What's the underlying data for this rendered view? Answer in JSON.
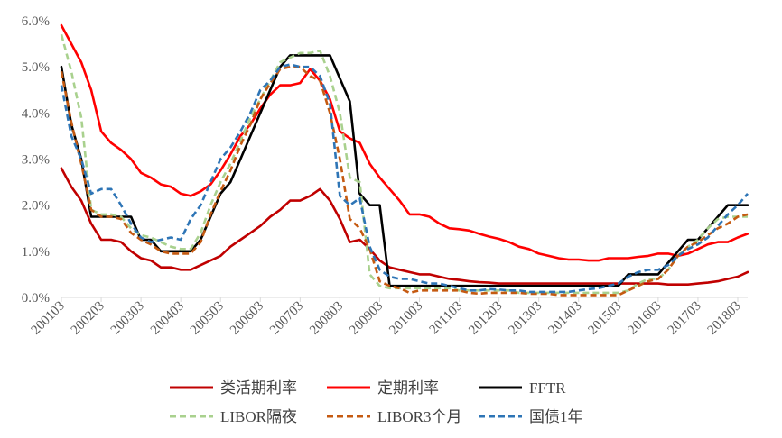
{
  "chart_data": {
    "type": "line",
    "title": "",
    "xlabel": "",
    "ylabel": "",
    "ylim": [
      0,
      6
    ],
    "yticks": [
      "0.0%",
      "1.0%",
      "2.0%",
      "3.0%",
      "4.0%",
      "5.0%",
      "6.0%"
    ],
    "x_ticklabels": [
      "200103",
      "200203",
      "200303",
      "200403",
      "200503",
      "200603",
      "200703",
      "200803",
      "200903",
      "201003",
      "201103",
      "201203",
      "201303",
      "201403",
      "201503",
      "201603",
      "201703",
      "201803"
    ],
    "quarters_per_label": 4,
    "n_points": 70,
    "series": [
      {
        "name": "类活期利率",
        "color": "#C00000",
        "dash": "solid",
        "values": [
          2.8,
          2.4,
          2.1,
          1.6,
          1.25,
          1.25,
          1.2,
          1.0,
          0.85,
          0.8,
          0.65,
          0.65,
          0.6,
          0.6,
          0.7,
          0.8,
          0.9,
          1.1,
          1.25,
          1.4,
          1.55,
          1.75,
          1.9,
          2.1,
          2.1,
          2.2,
          2.35,
          2.1,
          1.7,
          1.2,
          1.25,
          1.05,
          0.8,
          0.65,
          0.6,
          0.55,
          0.5,
          0.5,
          0.45,
          0.4,
          0.38,
          0.35,
          0.33,
          0.32,
          0.3,
          0.3,
          0.3,
          0.3,
          0.3,
          0.3,
          0.3,
          0.3,
          0.3,
          0.3,
          0.3,
          0.3,
          0.3,
          0.3,
          0.3,
          0.3,
          0.3,
          0.28,
          0.28,
          0.28,
          0.3,
          0.32,
          0.35,
          0.4,
          0.45,
          0.55
        ]
      },
      {
        "name": "定期利率",
        "color": "#FF0000",
        "dash": "solid",
        "values": [
          5.9,
          5.5,
          5.1,
          4.5,
          3.6,
          3.35,
          3.2,
          3.0,
          2.7,
          2.6,
          2.45,
          2.4,
          2.25,
          2.2,
          2.3,
          2.45,
          2.75,
          3.1,
          3.5,
          3.75,
          4.1,
          4.4,
          4.6,
          4.6,
          4.65,
          4.95,
          4.7,
          4.3,
          3.6,
          3.45,
          3.35,
          2.9,
          2.6,
          2.35,
          2.1,
          1.8,
          1.8,
          1.75,
          1.6,
          1.5,
          1.48,
          1.45,
          1.38,
          1.32,
          1.27,
          1.2,
          1.1,
          1.05,
          0.95,
          0.9,
          0.85,
          0.82,
          0.82,
          0.8,
          0.8,
          0.85,
          0.85,
          0.85,
          0.88,
          0.9,
          0.95,
          0.95,
          0.9,
          0.95,
          1.05,
          1.15,
          1.2,
          1.2,
          1.3,
          1.38
        ]
      },
      {
        "name": "FFTR",
        "color": "#000000",
        "dash": "solid",
        "values": [
          5.0,
          3.75,
          3.0,
          1.75,
          1.75,
          1.75,
          1.75,
          1.75,
          1.25,
          1.25,
          1.0,
          1.0,
          1.0,
          1.0,
          1.25,
          1.75,
          2.25,
          2.5,
          3.0,
          3.5,
          4.0,
          4.5,
          5.0,
          5.25,
          5.25,
          5.25,
          5.25,
          5.25,
          4.75,
          4.25,
          2.25,
          2.0,
          2.0,
          0.25,
          0.25,
          0.25,
          0.25,
          0.25,
          0.25,
          0.25,
          0.25,
          0.25,
          0.25,
          0.25,
          0.25,
          0.25,
          0.25,
          0.25,
          0.25,
          0.25,
          0.25,
          0.25,
          0.25,
          0.25,
          0.25,
          0.25,
          0.25,
          0.5,
          0.5,
          0.5,
          0.5,
          0.75,
          1.0,
          1.25,
          1.25,
          1.5,
          1.75,
          2.0,
          2.0,
          2.0
        ]
      },
      {
        "name": "LIBOR隔夜",
        "color": "#A9D18E",
        "dash": "dashed",
        "values": [
          5.7,
          4.9,
          3.9,
          1.9,
          1.8,
          1.8,
          1.75,
          1.5,
          1.35,
          1.3,
          1.2,
          1.1,
          1.05,
          1.05,
          1.4,
          2.0,
          2.5,
          2.9,
          3.4,
          3.9,
          4.3,
          4.7,
          5.1,
          5.2,
          5.3,
          5.3,
          5.35,
          4.8,
          4.0,
          2.6,
          2.5,
          0.5,
          0.25,
          0.2,
          0.2,
          0.2,
          0.2,
          0.2,
          0.2,
          0.2,
          0.15,
          0.15,
          0.15,
          0.15,
          0.15,
          0.15,
          0.1,
          0.1,
          0.1,
          0.1,
          0.1,
          0.1,
          0.1,
          0.1,
          0.1,
          0.1,
          0.1,
          0.15,
          0.3,
          0.4,
          0.4,
          0.6,
          0.9,
          1.1,
          1.25,
          1.5,
          1.7,
          1.75,
          1.75,
          1.75
        ]
      },
      {
        "name": "LIBOR3个月",
        "color": "#C55A11",
        "dash": "dashed",
        "values": [
          4.9,
          3.8,
          2.9,
          1.9,
          1.75,
          1.75,
          1.7,
          1.4,
          1.25,
          1.15,
          1.0,
          0.95,
          0.95,
          0.95,
          1.2,
          1.8,
          2.3,
          2.75,
          3.3,
          3.75,
          4.3,
          4.65,
          4.95,
          5.0,
          5.0,
          4.8,
          4.7,
          4.0,
          3.0,
          1.7,
          1.5,
          1.05,
          0.35,
          0.25,
          0.2,
          0.1,
          0.15,
          0.15,
          0.15,
          0.15,
          0.15,
          0.1,
          0.08,
          0.1,
          0.1,
          0.1,
          0.1,
          0.08,
          0.08,
          0.08,
          0.05,
          0.05,
          0.05,
          0.05,
          0.05,
          0.05,
          0.05,
          0.15,
          0.25,
          0.35,
          0.4,
          0.6,
          0.9,
          1.1,
          1.2,
          1.35,
          1.5,
          1.6,
          1.75,
          1.8
        ]
      },
      {
        "name": "国债1年",
        "color": "#2E75B6",
        "dash": "dashed",
        "values": [
          4.6,
          3.5,
          3.0,
          2.25,
          2.35,
          2.35,
          2.0,
          1.6,
          1.3,
          1.2,
          1.25,
          1.3,
          1.25,
          1.7,
          2.0,
          2.5,
          3.0,
          3.25,
          3.6,
          4.0,
          4.5,
          4.7,
          5.0,
          5.05,
          5.0,
          5.0,
          4.8,
          4.2,
          2.2,
          2.0,
          2.15,
          1.1,
          0.6,
          0.45,
          0.4,
          0.4,
          0.35,
          0.3,
          0.3,
          0.25,
          0.2,
          0.15,
          0.15,
          0.18,
          0.17,
          0.15,
          0.15,
          0.12,
          0.12,
          0.12,
          0.12,
          0.12,
          0.15,
          0.18,
          0.2,
          0.25,
          0.3,
          0.45,
          0.55,
          0.6,
          0.6,
          0.7,
          0.9,
          1.05,
          1.15,
          1.3,
          1.55,
          1.8,
          2.0,
          2.25
        ]
      }
    ],
    "legend": {
      "position": "bottom",
      "rows": [
        [
          "类活期利率",
          "定期利率",
          "FFTR"
        ],
        [
          "LIBOR隔夜",
          "LIBOR3个月",
          "国债1年"
        ]
      ]
    }
  }
}
